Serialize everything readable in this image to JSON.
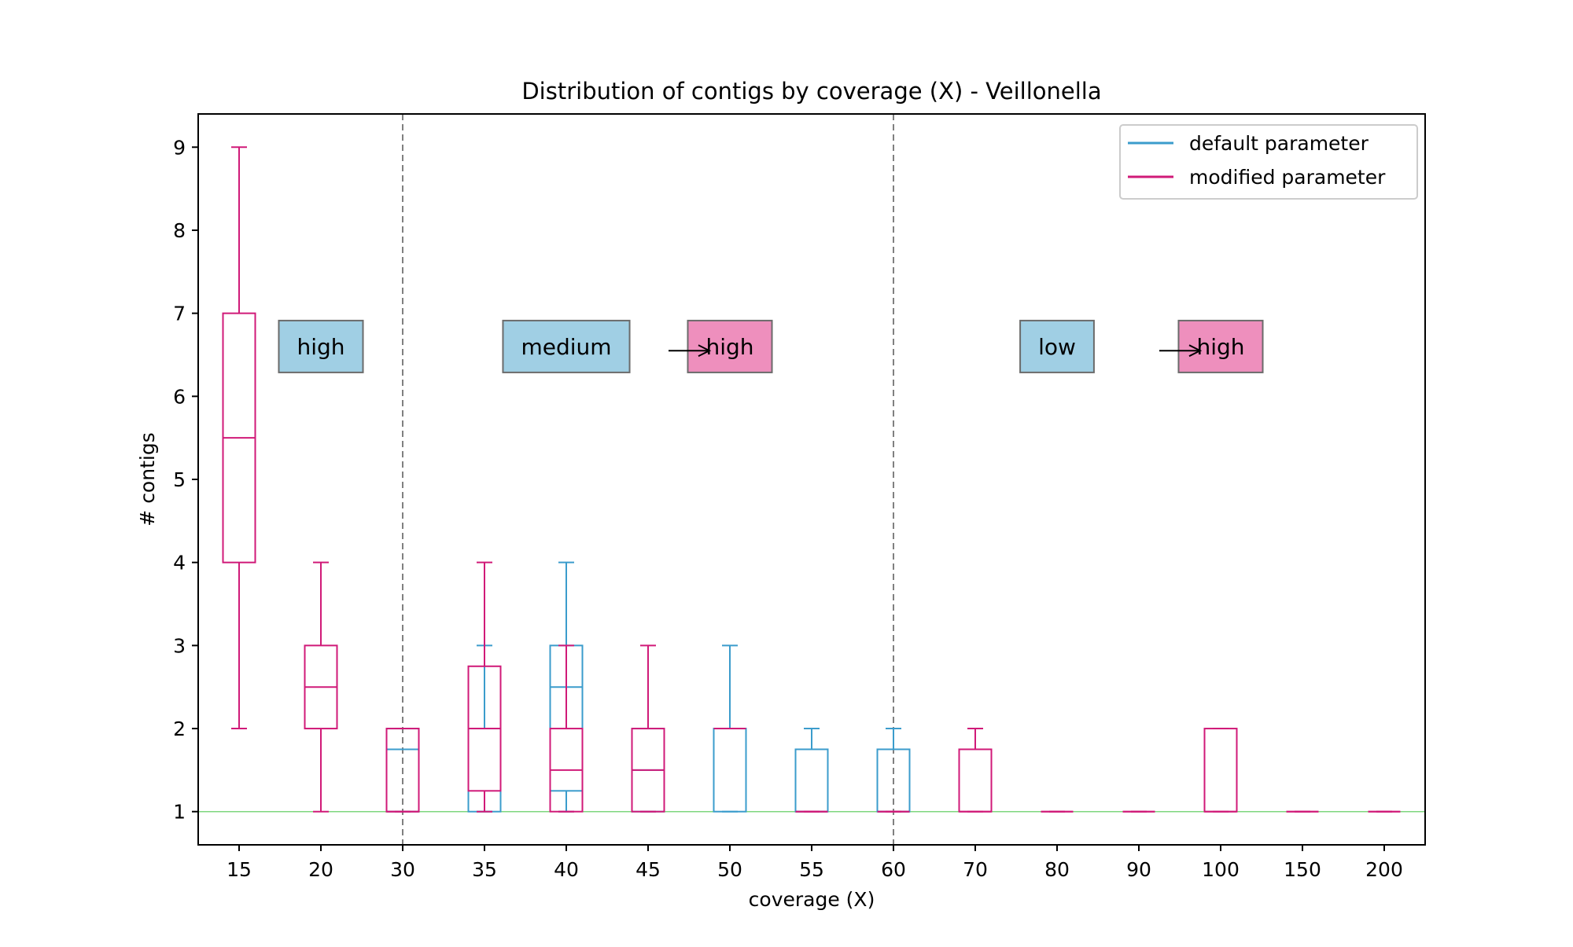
{
  "chart_data": {
    "type": "box",
    "title": "Distribution of contigs by coverage (X) - Veillonella",
    "xlabel": "coverage (X)",
    "ylabel": "# contigs",
    "categories": [
      "15",
      "20",
      "30",
      "35",
      "40",
      "45",
      "50",
      "55",
      "60",
      "70",
      "80",
      "90",
      "100",
      "150",
      "200"
    ],
    "ylim": [
      0.6,
      9.4
    ],
    "yticks": [
      1,
      2,
      3,
      4,
      5,
      6,
      7,
      8,
      9
    ],
    "grid": false,
    "legend_position": "top-right",
    "colors": {
      "default": "#3b9ccc",
      "modified": "#d01a78",
      "baseline": "#7fd77f",
      "divider": "#808080",
      "box_blue": "#a0cfe4",
      "box_pink": "#ee8fbd"
    },
    "series": [
      {
        "name": "default parameter",
        "color": "#3b9ccc",
        "boxes": [
          null,
          null,
          {
            "whislo": 1,
            "q1": 1,
            "med": 1.75,
            "q3": 2,
            "whishi": 2
          },
          {
            "whislo": 1,
            "q1": 1,
            "med": 2,
            "q3": 2,
            "whishi": 3
          },
          {
            "whislo": 1,
            "q1": 1.25,
            "med": 2.5,
            "q3": 3,
            "whishi": 4
          },
          {
            "whislo": 1,
            "q1": 1,
            "med": 1.5,
            "q3": 2,
            "whishi": 2
          },
          {
            "whislo": 1,
            "q1": 1,
            "med": 2,
            "q3": 2,
            "whishi": 3
          },
          {
            "whislo": 1,
            "q1": 1,
            "med": 1,
            "q3": 1.75,
            "whishi": 2
          },
          {
            "whislo": 1,
            "q1": 1,
            "med": 1,
            "q3": 1.75,
            "whishi": 2
          },
          null,
          null,
          null,
          null,
          null,
          null
        ]
      },
      {
        "name": "modified parameter",
        "color": "#d01a78",
        "boxes": [
          {
            "whislo": 2,
            "q1": 4,
            "med": 5.5,
            "q3": 7,
            "whishi": 9
          },
          {
            "whislo": 1,
            "q1": 2,
            "med": 2.5,
            "q3": 3,
            "whishi": 4
          },
          {
            "whislo": 1,
            "q1": 1,
            "med": 1,
            "q3": 2,
            "whishi": 2
          },
          {
            "whislo": 1,
            "q1": 1.25,
            "med": 2,
            "q3": 2.75,
            "whishi": 4
          },
          {
            "whislo": 1,
            "q1": 1,
            "med": 1.5,
            "q3": 2,
            "whishi": 3
          },
          {
            "whislo": 1,
            "q1": 1,
            "med": 1.5,
            "q3": 2,
            "whishi": 3
          },
          {
            "whislo": 2,
            "q1": 2,
            "med": 2,
            "q3": 2,
            "whishi": 2
          },
          {
            "whislo": 1,
            "q1": 1,
            "med": 1,
            "q3": 1,
            "whishi": 1
          },
          {
            "whislo": 1,
            "q1": 1,
            "med": 1,
            "q3": 1,
            "whishi": 1
          },
          {
            "whislo": 1,
            "q1": 1,
            "med": 1,
            "q3": 1.75,
            "whishi": 2
          },
          {
            "whislo": 1,
            "q1": 1,
            "med": 1,
            "q3": 1,
            "whishi": 1
          },
          {
            "whislo": 1,
            "q1": 1,
            "med": 1,
            "q3": 1,
            "whishi": 1
          },
          {
            "whislo": 1,
            "q1": 1,
            "med": 1,
            "q3": 2,
            "whishi": 2
          },
          {
            "whislo": 1,
            "q1": 1,
            "med": 1,
            "q3": 1,
            "whishi": 1
          },
          {
            "whislo": 1,
            "q1": 1,
            "med": 1,
            "q3": 1,
            "whishi": 1
          }
        ]
      }
    ],
    "reference_line": {
      "y": 1
    },
    "dividers_x": [
      "30",
      "60"
    ],
    "annotations": [
      {
        "text": "high",
        "category": "20",
        "y": 6.6,
        "style": "blue"
      },
      {
        "text": "medium",
        "category": "40",
        "y": 6.6,
        "style": "blue"
      },
      {
        "text": "high",
        "category": "50",
        "y": 6.6,
        "style": "pink"
      },
      {
        "text": "low",
        "category": "80",
        "y": 6.6,
        "style": "blue"
      },
      {
        "text": "high",
        "category": "100",
        "y": 6.6,
        "style": "pink"
      }
    ],
    "arrows": [
      {
        "from_category": "45",
        "to_category": "50",
        "y": 6.55
      },
      {
        "from_category": "90",
        "to_category": "100",
        "y": 6.55
      }
    ]
  }
}
